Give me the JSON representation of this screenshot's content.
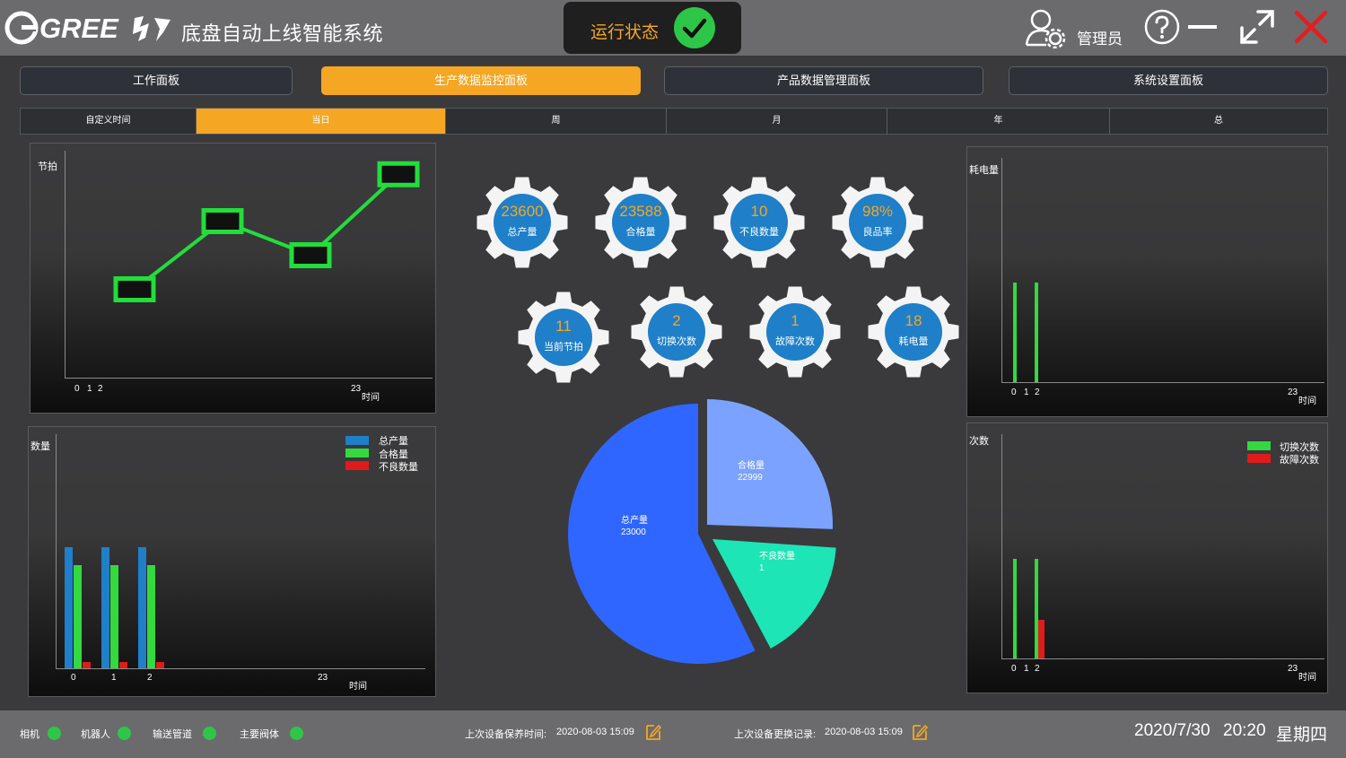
{
  "header": {
    "logo_text": "GREE",
    "title": "底盘自动上线智能系统",
    "run_status_label": "运行状态",
    "user_label": "管理员"
  },
  "nav": [
    {
      "label": "工作面板",
      "active": false
    },
    {
      "label": "生产数据监控面板",
      "active": true
    },
    {
      "label": "产品数据管理面板",
      "active": false
    },
    {
      "label": "系统设置面板",
      "active": false
    }
  ],
  "time_tabs": [
    {
      "label": "自定义时间",
      "active": false
    },
    {
      "label": "当日",
      "active": true
    },
    {
      "label": "周",
      "active": false
    },
    {
      "label": "月",
      "active": false
    },
    {
      "label": "年",
      "active": false
    },
    {
      "label": "总",
      "active": false
    }
  ],
  "gears": [
    {
      "value": "23600",
      "label": "总产量"
    },
    {
      "value": "23588",
      "label": "合格量"
    },
    {
      "value": "10",
      "label": "不良数量"
    },
    {
      "value": "98%",
      "label": "良品率"
    },
    {
      "value": "11",
      "label": "当前节拍"
    },
    {
      "value": "2",
      "label": "切换次数"
    },
    {
      "value": "1",
      "label": "故障次数"
    },
    {
      "value": "18",
      "label": "耗电量"
    }
  ],
  "charts": {
    "takt": {
      "ylabel": "节拍",
      "xlabel": "时间",
      "ticks": [
        "0",
        "1",
        "2",
        "23"
      ]
    },
    "quantity": {
      "ylabel": "数量",
      "xlabel": "时间",
      "ticks": [
        "0",
        "1",
        "2",
        "23"
      ],
      "legend": [
        "总产量",
        "合格量",
        "不良数量"
      ]
    },
    "power": {
      "ylabel": "耗电量",
      "xlabel": "时间",
      "ticks": [
        "0",
        "1",
        "2",
        "23"
      ]
    },
    "counts": {
      "ylabel": "次数",
      "xlabel": "时间",
      "ticks": [
        "0",
        "1",
        "2",
        "23"
      ],
      "legend": [
        "切换次数",
        "故障次数"
      ]
    },
    "pie": {
      "slices": [
        {
          "name": "合格量",
          "value": "22999"
        },
        {
          "name": "不良数量",
          "value": "1"
        },
        {
          "name": "总产量",
          "value": "23000"
        }
      ]
    }
  },
  "chart_data": [
    {
      "type": "line",
      "ylabel": "节拍",
      "xlabel": "时间",
      "x": [
        0,
        1,
        2,
        3
      ],
      "values": [
        1,
        2.6,
        1.8,
        3.7
      ],
      "markers": "square"
    },
    {
      "type": "bar",
      "ylabel": "数量",
      "xlabel": "时间",
      "categories": [
        "0",
        "1",
        "2"
      ],
      "series": [
        {
          "name": "总产量",
          "values": [
            100,
            100,
            100
          ]
        },
        {
          "name": "合格量",
          "values": [
            85,
            85,
            85
          ]
        },
        {
          "name": "不良数量",
          "values": [
            5,
            5,
            5
          ]
        }
      ]
    },
    {
      "type": "bar",
      "ylabel": "耗电量",
      "xlabel": "时间",
      "categories": [
        "0",
        "1",
        "2"
      ],
      "values": [
        0,
        82,
        82
      ]
    },
    {
      "type": "bar",
      "ylabel": "次数",
      "xlabel": "时间",
      "categories": [
        "0",
        "1",
        "2"
      ],
      "series": [
        {
          "name": "切换次数",
          "values": [
            0,
            82,
            82
          ]
        },
        {
          "name": "故障次数",
          "values": [
            0,
            0,
            32
          ]
        }
      ]
    },
    {
      "type": "pie",
      "categories": [
        "合格量",
        "不良数量",
        "总产量"
      ],
      "values": [
        22999,
        1,
        23000
      ]
    }
  ],
  "footer": {
    "status_items": [
      "相机",
      "机器人",
      "输送管道",
      "主要阀体"
    ],
    "maintenance_label": "上次设备保养时间:",
    "maintenance_time": "2020-08-03  15:09",
    "replacement_label": "上次设备更换记录:",
    "replacement_time": "2020-08-03  15:09",
    "date": "2020/7/30",
    "time": "20:20",
    "weekday": "星期四"
  },
  "colors": {
    "accent": "#f5a623",
    "ok": "#2ec648",
    "blue": "#1f7fc8",
    "green": "#33d93f",
    "red": "#e01b1b",
    "pie_blue": "#2f66ff",
    "pie_light": "#7ca2ff",
    "pie_teal": "#1de5b6"
  }
}
